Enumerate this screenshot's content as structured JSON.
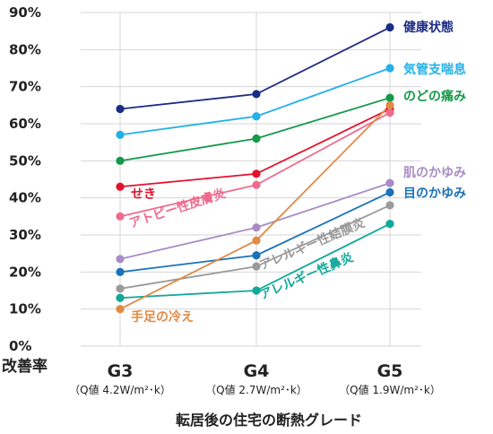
{
  "chart_data": {
    "type": "line",
    "title": "",
    "ylabel": "改善率",
    "xlabel": "転居後の住宅の断熱グレード",
    "ylim": [
      0,
      90
    ],
    "yticks": [
      "0%",
      "10%",
      "20%",
      "30%",
      "40%",
      "50%",
      "60%",
      "70%",
      "80%",
      "90%"
    ],
    "grid": true,
    "categories": [
      {
        "name": "G3",
        "sub": "（Q値 4.2W/m²･k）"
      },
      {
        "name": "G4",
        "sub": "（Q値 2.7W/m²･k）"
      },
      {
        "name": "G5",
        "sub": "（Q値 1.9W/m²･k）"
      }
    ],
    "series": [
      {
        "name": "健康状態",
        "color": "#1b2c86",
        "values": [
          64,
          68,
          86
        ]
      },
      {
        "name": "気管支喘息",
        "color": "#23b1e8",
        "values": [
          57,
          62,
          75
        ]
      },
      {
        "name": "のどの痛み",
        "color": "#14994a",
        "values": [
          50,
          56,
          67
        ]
      },
      {
        "name": "せき",
        "color": "#e5112c",
        "values": [
          43,
          46.5,
          64
        ]
      },
      {
        "name": "アトピー性皮膚炎",
        "color": "#ef6b8e",
        "values": [
          35,
          43.5,
          63
        ]
      },
      {
        "name": "肌のかゆみ",
        "color": "#a98cc5",
        "values": [
          23.5,
          32,
          44
        ]
      },
      {
        "name": "目のかゆみ",
        "color": "#1a72b8",
        "values": [
          20,
          24.5,
          41.5
        ]
      },
      {
        "name": "アレルギー性結膜炎",
        "color": "#9a9a9a",
        "values": [
          15.5,
          21.5,
          38
        ]
      },
      {
        "name": "アレルギー性鼻炎",
        "color": "#12a89a",
        "values": [
          13,
          15,
          33
        ]
      },
      {
        "name": "手足の冷え",
        "color": "#e08a45",
        "values": [
          10,
          28.5,
          65
        ]
      }
    ]
  }
}
